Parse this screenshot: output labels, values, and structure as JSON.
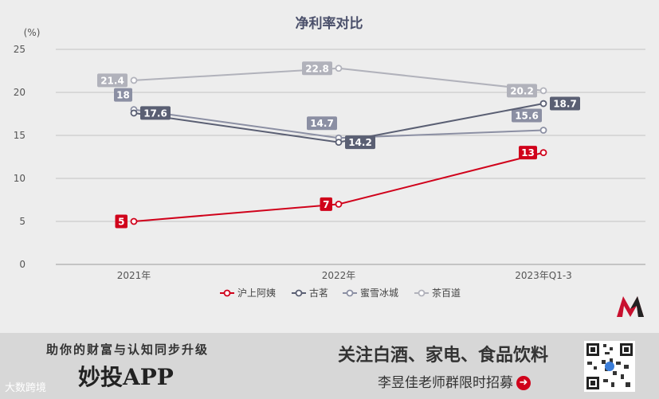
{
  "chart_data": {
    "type": "line",
    "title": "净利率对比",
    "yunit": "(%)",
    "categories": [
      "2021年",
      "2022年",
      "2023年Q1-3"
    ],
    "yticks": [
      0,
      5,
      10,
      15,
      20,
      25
    ],
    "ylim": [
      0,
      25
    ],
    "grid": true,
    "legend_position": "bottom",
    "series": [
      {
        "name": "沪上阿姨",
        "values": [
          5,
          7,
          13
        ],
        "color": "#d0021b",
        "label_side": [
          "left",
          "left",
          "left"
        ]
      },
      {
        "name": "古茗",
        "values": [
          17.6,
          14.2,
          18.7
        ],
        "color": "#5a5f73",
        "label_side": [
          "right",
          "right",
          "right"
        ]
      },
      {
        "name": "蜜雪冰城",
        "values": [
          18,
          14.7,
          15.6
        ],
        "color": "#8b8fa3",
        "label_side": [
          "above-left",
          "above-left",
          "above-left"
        ]
      },
      {
        "name": "茶百道",
        "values": [
          21.4,
          22.8,
          20.2
        ],
        "color": "#b1b2bb",
        "label_side": [
          "left",
          "left",
          "left"
        ]
      }
    ]
  },
  "banner": {
    "left_title": "助你的财富与认知同步升级",
    "left_big": "妙投APP",
    "right_title": "关注白酒、家电、食品饮料",
    "right_sub": "李昱佳老师群限时招募",
    "arrow": "➜",
    "watermark": "大数跨境"
  },
  "icons": {
    "logo": "m-logo-icon",
    "qr": "qr-code-icon",
    "arrow": "arrow-right-icon"
  }
}
